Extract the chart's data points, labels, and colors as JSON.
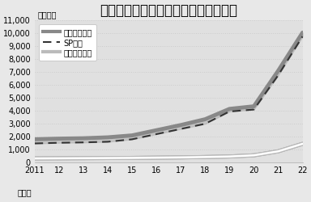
{
  "title": "航空・海上貨物の輸入許可件数の推移",
  "ylabel": "（万件）",
  "xlabel": "（年）",
  "years": [
    2011,
    2012,
    2013,
    2014,
    2015,
    2016,
    2017,
    2018,
    2019,
    2020,
    2021,
    2022
  ],
  "air_total": [
    1800,
    1850,
    1880,
    1950,
    2100,
    2500,
    2900,
    3350,
    4150,
    4350,
    7100,
    10050
  ],
  "sp_cargo": [
    1480,
    1530,
    1560,
    1610,
    1800,
    2200,
    2600,
    3000,
    3950,
    4100,
    6750,
    9750
  ],
  "sea_total": [
    320,
    330,
    340,
    350,
    360,
    380,
    400,
    430,
    470,
    560,
    870,
    1450
  ],
  "ylim": [
    0,
    11000
  ],
  "yticks": [
    0,
    1000,
    2000,
    3000,
    4000,
    5000,
    6000,
    7000,
    8000,
    9000,
    10000,
    11000
  ],
  "ytick_labels": [
    "0",
    "1,000",
    "2,000",
    "3,000",
    "4,000",
    "5,000",
    "6,000",
    "7,000",
    "8,000",
    "9,000",
    "10,000",
    "11,000"
  ],
  "air_color": "#888888",
  "sp_color": "#333333",
  "sea_color": "#dddddd",
  "bg_color": "#e0e0e0",
  "fig_color": "#e8e8e8",
  "legend_labels": [
    "航空貨物全体",
    "SP貨物",
    "海上貨物全体"
  ],
  "title_fontsize": 12,
  "label_fontsize": 7,
  "tick_fontsize": 7
}
